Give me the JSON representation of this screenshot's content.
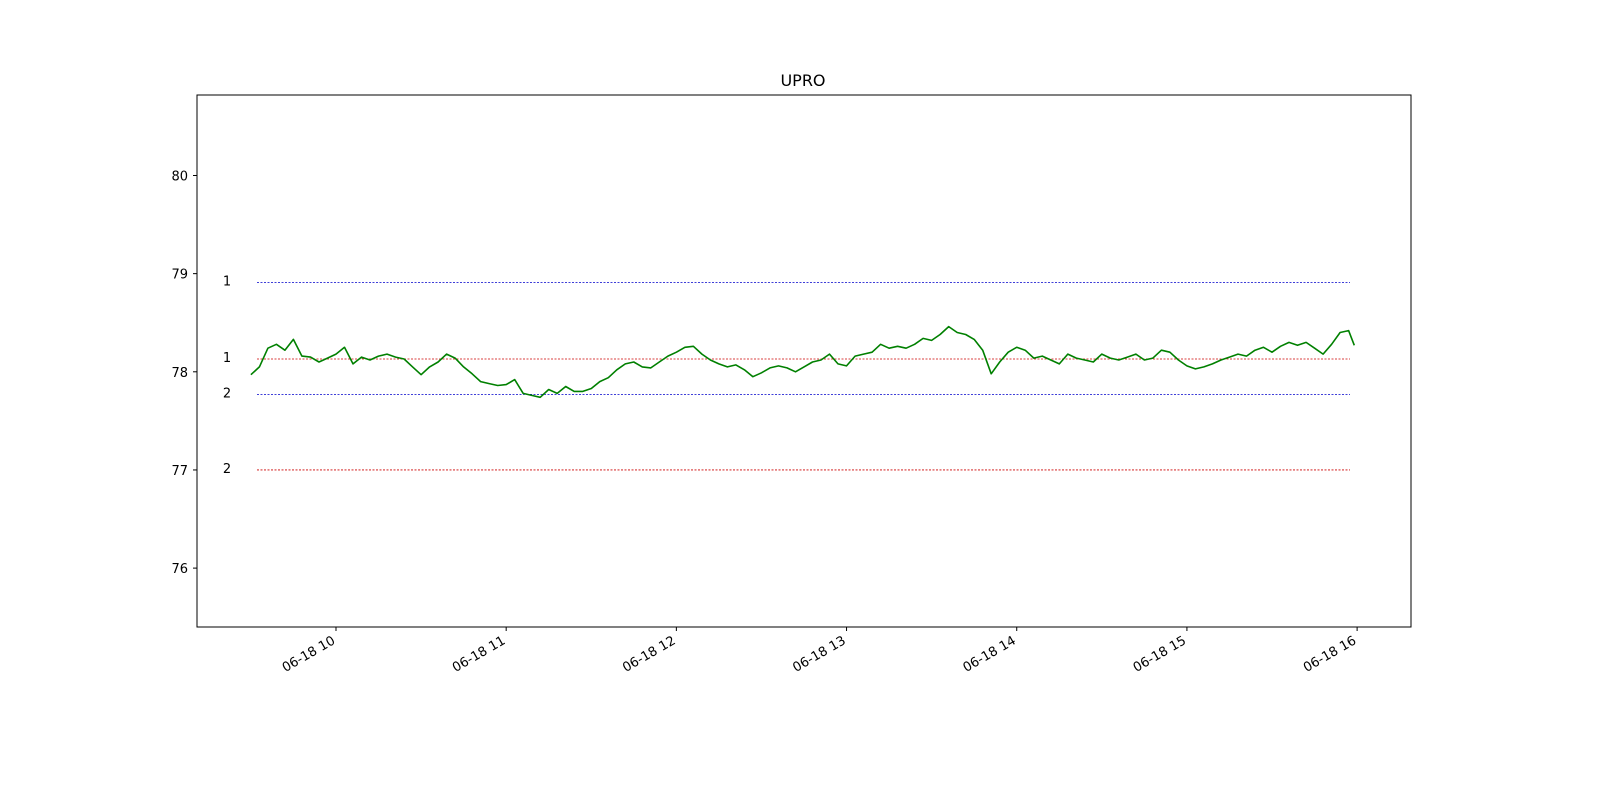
{
  "chart_data": {
    "type": "line",
    "title": "UPRO",
    "xlabel": "",
    "ylabel": "",
    "x_ticks": [
      "06-18 10",
      "06-18 11",
      "06-18 12",
      "06-18 13",
      "06-18 14",
      "06-18 15",
      "06-18 16"
    ],
    "y_ticks": [
      76,
      77,
      78,
      79,
      80
    ],
    "xlim": [
      "06-18 09:11",
      "06-18 16:19"
    ],
    "ylim": [
      75.4,
      80.82
    ],
    "grid": false,
    "series": [
      {
        "color": "#008000",
        "x": [
          "06-18 09:30",
          "06-18 09:33",
          "06-18 09:36",
          "06-18 09:39",
          "06-18 09:42",
          "06-18 09:45",
          "06-18 09:48",
          "06-18 09:51",
          "06-18 09:54",
          "06-18 09:57",
          "06-18 10:00",
          "06-18 10:03",
          "06-18 10:06",
          "06-18 10:09",
          "06-18 10:12",
          "06-18 10:15",
          "06-18 10:18",
          "06-18 10:21",
          "06-18 10:24",
          "06-18 10:27",
          "06-18 10:30",
          "06-18 10:33",
          "06-18 10:36",
          "06-18 10:39",
          "06-18 10:42",
          "06-18 10:45",
          "06-18 10:48",
          "06-18 10:51",
          "06-18 10:54",
          "06-18 10:57",
          "06-18 11:00",
          "06-18 11:03",
          "06-18 11:06",
          "06-18 11:09",
          "06-18 11:12",
          "06-18 11:15",
          "06-18 11:18",
          "06-18 11:21",
          "06-18 11:24",
          "06-18 11:27",
          "06-18 11:30",
          "06-18 11:33",
          "06-18 11:36",
          "06-18 11:39",
          "06-18 11:42",
          "06-18 11:45",
          "06-18 11:48",
          "06-18 11:51",
          "06-18 11:54",
          "06-18 11:57",
          "06-18 12:00",
          "06-18 12:03",
          "06-18 12:06",
          "06-18 12:09",
          "06-18 12:12",
          "06-18 12:15",
          "06-18 12:18",
          "06-18 12:21",
          "06-18 12:24",
          "06-18 12:27",
          "06-18 12:30",
          "06-18 12:33",
          "06-18 12:36",
          "06-18 12:39",
          "06-18 12:42",
          "06-18 12:45",
          "06-18 12:48",
          "06-18 12:51",
          "06-18 12:54",
          "06-18 12:57",
          "06-18 13:00",
          "06-18 13:03",
          "06-18 13:06",
          "06-18 13:09",
          "06-18 13:12",
          "06-18 13:15",
          "06-18 13:18",
          "06-18 13:21",
          "06-18 13:24",
          "06-18 13:27",
          "06-18 13:30",
          "06-18 13:33",
          "06-18 13:36",
          "06-18 13:39",
          "06-18 13:42",
          "06-18 13:45",
          "06-18 13:48",
          "06-18 13:51",
          "06-18 13:54",
          "06-18 13:57",
          "06-18 14:00",
          "06-18 14:03",
          "06-18 14:06",
          "06-18 14:09",
          "06-18 14:12",
          "06-18 14:15",
          "06-18 14:18",
          "06-18 14:21",
          "06-18 14:24",
          "06-18 14:27",
          "06-18 14:30",
          "06-18 14:33",
          "06-18 14:36",
          "06-18 14:39",
          "06-18 14:42",
          "06-18 14:45",
          "06-18 14:48",
          "06-18 14:51",
          "06-18 14:54",
          "06-18 14:57",
          "06-18 15:00",
          "06-18 15:03",
          "06-18 15:06",
          "06-18 15:09",
          "06-18 15:12",
          "06-18 15:15",
          "06-18 15:18",
          "06-18 15:21",
          "06-18 15:24",
          "06-18 15:27",
          "06-18 15:30",
          "06-18 15:33",
          "06-18 15:36",
          "06-18 15:39",
          "06-18 15:42",
          "06-18 15:45",
          "06-18 15:48",
          "06-18 15:51",
          "06-18 15:54",
          "06-18 15:57",
          "06-18 15:59"
        ],
        "y": [
          77.97,
          78.05,
          78.24,
          78.28,
          78.22,
          78.33,
          78.16,
          78.15,
          78.1,
          78.14,
          78.18,
          78.25,
          78.08,
          78.15,
          78.12,
          78.16,
          78.18,
          78.15,
          78.13,
          78.05,
          77.97,
          78.05,
          78.1,
          78.18,
          78.14,
          78.05,
          77.98,
          77.9,
          77.88,
          77.86,
          77.87,
          77.92,
          77.78,
          77.76,
          77.74,
          77.82,
          77.78,
          77.85,
          77.8,
          77.8,
          77.83,
          77.9,
          77.94,
          78.02,
          78.08,
          78.1,
          78.05,
          78.04,
          78.1,
          78.16,
          78.2,
          78.25,
          78.26,
          78.18,
          78.12,
          78.08,
          78.05,
          78.07,
          78.02,
          77.95,
          77.99,
          78.04,
          78.06,
          78.04,
          78.0,
          78.05,
          78.1,
          78.12,
          78.18,
          78.08,
          78.06,
          78.16,
          78.18,
          78.2,
          78.28,
          78.24,
          78.26,
          78.24,
          78.28,
          78.34,
          78.32,
          78.38,
          78.46,
          78.4,
          78.38,
          78.33,
          78.22,
          77.98,
          78.1,
          78.2,
          78.25,
          78.22,
          78.14,
          78.16,
          78.12,
          78.08,
          78.18,
          78.14,
          78.12,
          78.1,
          78.18,
          78.14,
          78.12,
          78.15,
          78.18,
          78.12,
          78.14,
          78.22,
          78.2,
          78.12,
          78.06,
          78.03,
          78.05,
          78.08,
          78.12,
          78.15,
          78.18,
          78.16,
          78.22,
          78.25,
          78.2,
          78.26,
          78.3,
          78.27,
          78.3,
          78.24,
          78.18,
          78.28,
          78.4,
          78.42,
          78.27
        ]
      }
    ],
    "levels": [
      {
        "label": "1",
        "value": 78.91,
        "color": "#0000cc"
      },
      {
        "label": "1",
        "value": 78.13,
        "color": "#cc0000"
      },
      {
        "label": "2",
        "value": 77.77,
        "color": "#0000cc"
      },
      {
        "label": "2",
        "value": 77.0,
        "color": "#cc0000"
      }
    ]
  }
}
